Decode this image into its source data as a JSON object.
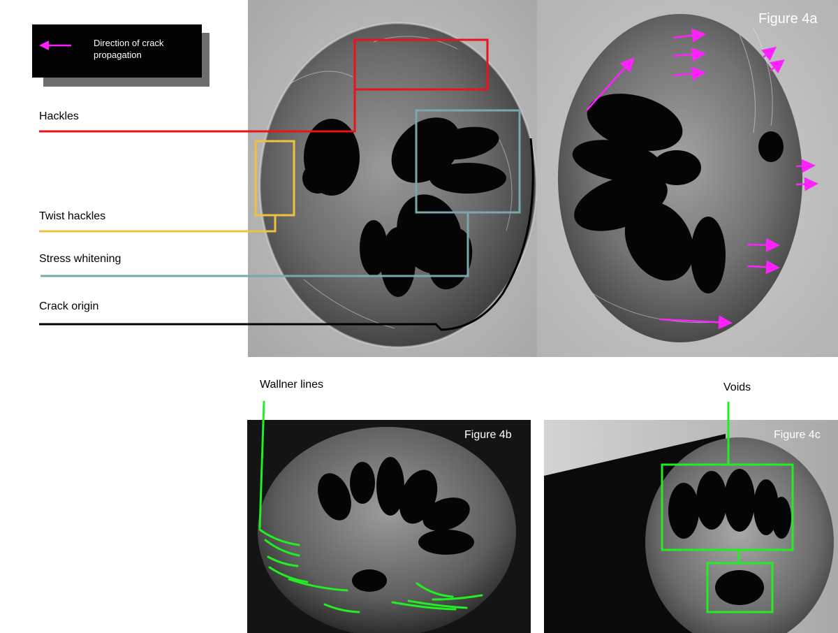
{
  "legend": {
    "text": "Direction of crack propagation",
    "arrow_color": "#ff22ff",
    "icon": "magenta-arrow-icon"
  },
  "labels": {
    "hackles": "Hackles",
    "twist_hackles": "Twist hackles",
    "stress_whitening": "Stress whitening",
    "crack_origin": "Crack origin",
    "wallner_lines": "Wallner lines",
    "voids": "Voids"
  },
  "figures": {
    "fig4a": "Figure 4a",
    "fig4b": "Figure 4b",
    "fig4c": "Figure 4c"
  },
  "colors": {
    "hackles": "#e8131b",
    "twist_hackles": "#f0c040",
    "stress_whitening": "#7aa6ad",
    "crack_origin": "#000000",
    "wallner_and_voids": "#22ee22",
    "arrows": "#ff22ff"
  }
}
